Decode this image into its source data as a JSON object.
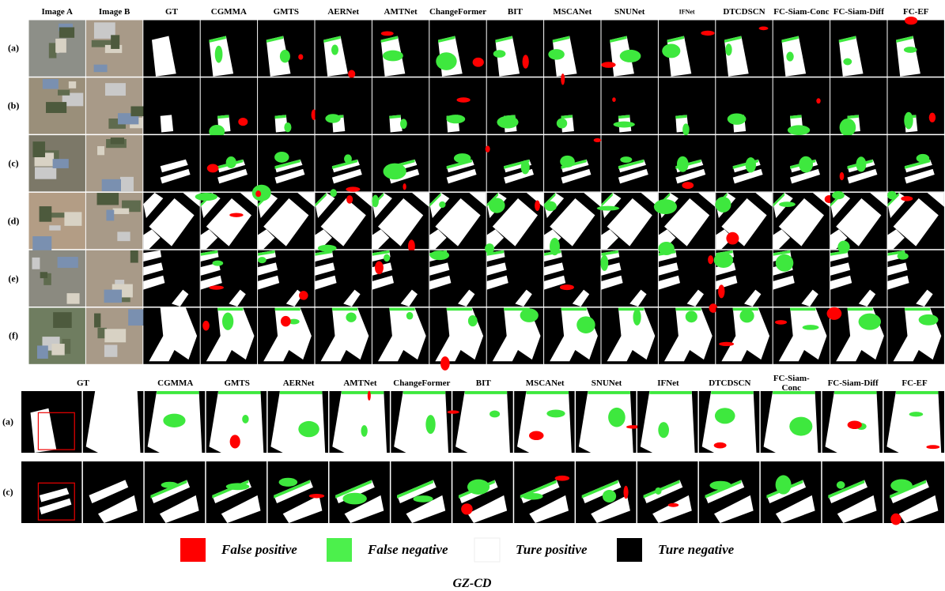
{
  "top": {
    "headers": [
      "Image A",
      "Image B",
      "GT",
      "CGMMA",
      "GMTS",
      "AERNet",
      "AMTNet",
      "ChangeFormer",
      "BIT",
      "MSCANet",
      "SNUNet",
      "IFNet",
      "DTCDSCN",
      "FC-Siam-Conc",
      "FC-Siam-Diff",
      "FC-EF"
    ],
    "rows": [
      "(a)",
      "(b)",
      "(c)",
      "(d)",
      "(e)",
      "(f)"
    ]
  },
  "bottom": {
    "headers": [
      "GT",
      "CGMMA",
      "GMTS",
      "AERNet",
      "AMTNet",
      "ChangeFormer",
      "BIT",
      "MSCANet",
      "SNUNet",
      "IFNet",
      "DTCDSCN",
      "FC-Siam-Conc",
      "FC-Siam-Diff",
      "FC-EF"
    ],
    "rows": [
      "(a)",
      "(c)"
    ]
  },
  "legend": [
    {
      "label": "False positive",
      "color": "#ff0000"
    },
    {
      "label": "False negative",
      "color": "#4cf04c"
    },
    {
      "label": "Ture positive",
      "color": "#ffffff"
    },
    {
      "label": "Ture negative",
      "color": "#000000"
    }
  ],
  "caption": "GZ-CD"
}
